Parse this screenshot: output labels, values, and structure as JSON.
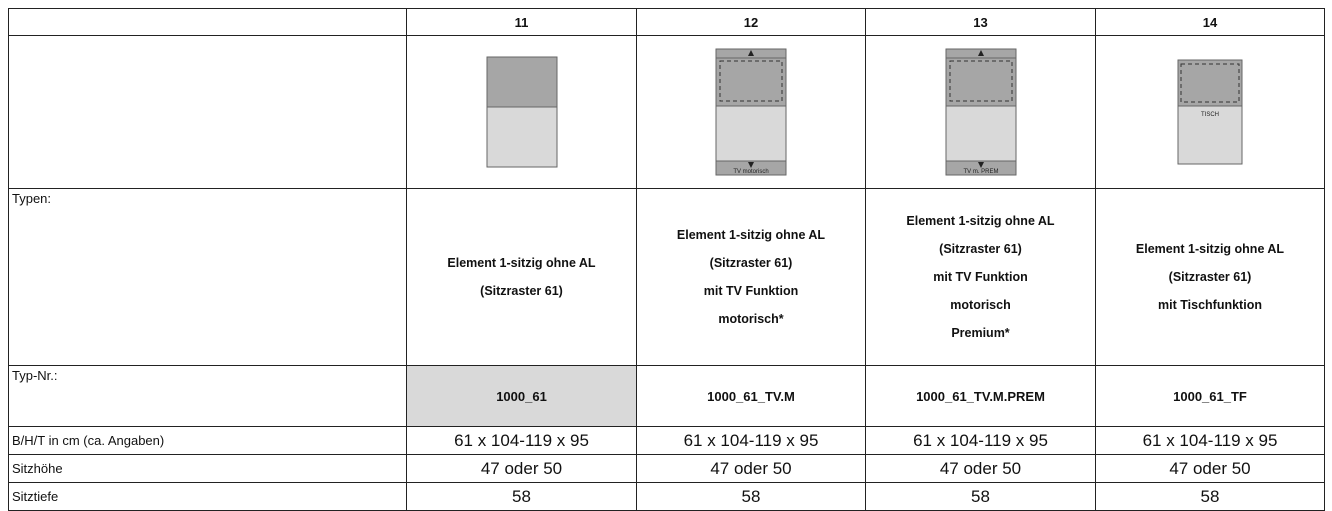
{
  "columns": [
    "11",
    "12",
    "13",
    "14"
  ],
  "diagram_labels": {
    "col12": "TV motorisch",
    "col13": "TV m. PREM",
    "col14": "TISCH"
  },
  "row_labels": {
    "typen": "Typen:",
    "typnr": "Typ-Nr.:",
    "bht": "B/H/T in cm (ca. Angaben)",
    "sitzhoehe": "Sitzhöhe",
    "sitztiefe": "Sitztiefe"
  },
  "types": [
    [
      "Element 1-sitzig ohne AL",
      "(Sitzraster 61)"
    ],
    [
      "Element 1-sitzig ohne AL",
      "(Sitzraster 61)",
      "mit TV Funktion",
      "motorisch*"
    ],
    [
      "Element 1-sitzig ohne AL",
      "(Sitzraster 61)",
      "mit TV Funktion",
      "motorisch",
      "Premium*"
    ],
    [
      "Element 1-sitzig ohne AL",
      "(Sitzraster 61)",
      "mit Tischfunktion"
    ]
  ],
  "typ_nr": [
    "1000_61",
    "1000_61_TV.M",
    "1000_61_TV.M.PREM",
    "1000_61_TF"
  ],
  "bht": [
    "61 x 104-119 x 95",
    "61 x 104-119 x 95",
    "61 x 104-119 x 95",
    "61 x 104-119 x 95"
  ],
  "sitzhoehe": [
    "47 oder 50",
    "47 oder 50",
    "47 oder 50",
    "47 oder 50"
  ],
  "sitztiefe": [
    "58",
    "58",
    "58",
    "58"
  ],
  "colors": {
    "back_fill": "#a6a6a6",
    "seat_fill": "#d9d9d9",
    "typnr_highlight": "#d9d9d9"
  }
}
